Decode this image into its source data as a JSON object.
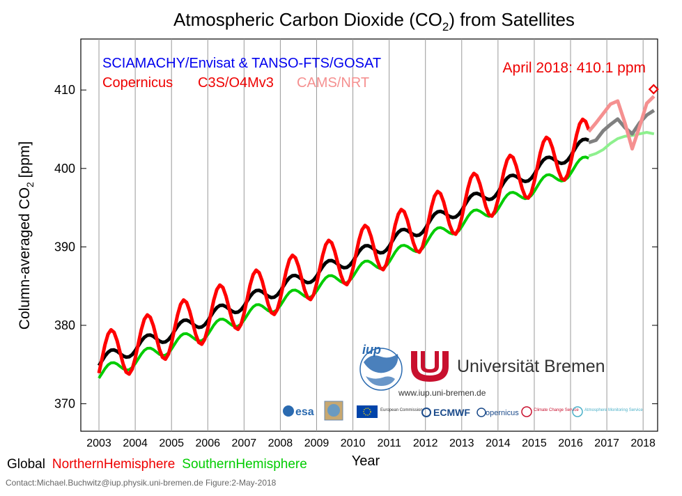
{
  "chart_data": {
    "type": "line",
    "title_main": "Atmospheric Carbon Dioxide (CO",
    "title_sub": "2",
    "title_end": ") from Satellites",
    "ylabel_main": "Column-averaged CO",
    "ylabel_sub": "2",
    "ylabel_end": " [ppm]",
    "xlabel": "Year",
    "ylim": [
      366.5,
      416.5
    ],
    "xlim": [
      2002.5,
      2018.4
    ],
    "y_ticks": [
      370,
      380,
      390,
      400,
      410
    ],
    "x_ticks": [
      2003,
      2004,
      2005,
      2006,
      2007,
      2008,
      2009,
      2010,
      2011,
      2012,
      2013,
      2014,
      2015,
      2016,
      2017,
      2018
    ],
    "grid": "vertical year lines",
    "legend_top": {
      "source_line": "SCIAMACHY/Envisat & TANSO-FTS/GOSAT",
      "copernicus": "Copernicus",
      "c3s": "C3S/O4Mv3",
      "cams": "CAMS/NRT",
      "latest": "April 2018: 410.1 ppm"
    },
    "legend_bottom": {
      "global": "Global",
      "nh": "NorthernHemisphere",
      "sh": "SouthernHemisphere"
    },
    "colors": {
      "global": "#000000",
      "global_nrt": "#808080",
      "nh": "#ff0000",
      "nh_nrt": "#f59090",
      "sh": "#00cc00",
      "sh_nrt": "#8ef08e",
      "source_line": "#0000ee",
      "latest": "#ee0000"
    },
    "latest_point": {
      "x": 2018.29,
      "y": 410.1
    },
    "model": {
      "start": 2003.0,
      "end": 2016.5,
      "nrt_start": 2016.5,
      "nrt_end": 2018.0,
      "global": {
        "base": 375.3,
        "rate_early": 1.9,
        "rate_late": 2.3,
        "amp": 0.9
      },
      "nh": {
        "base": 375.5,
        "rate_early": 1.9,
        "rate_late": 2.3,
        "amp": 3.3
      },
      "sh": {
        "base": 373.7,
        "rate_early": 1.85,
        "rate_late": 2.25,
        "amp": 0.9
      },
      "global_nrt": [
        [
          2016.5,
          403.3
        ],
        [
          2016.7,
          403.6
        ],
        [
          2016.9,
          404.8
        ],
        [
          2017.1,
          405.6
        ],
        [
          2017.3,
          406.3
        ],
        [
          2017.5,
          405.2
        ],
        [
          2017.7,
          404.4
        ],
        [
          2017.9,
          405.8
        ],
        [
          2018.1,
          406.8
        ],
        [
          2018.3,
          407.4
        ]
      ],
      "nh_nrt": [
        [
          2016.5,
          404.7
        ],
        [
          2016.7,
          405.8
        ],
        [
          2016.9,
          407.0
        ],
        [
          2017.1,
          408.2
        ],
        [
          2017.3,
          408.6
        ],
        [
          2017.5,
          405.8
        ],
        [
          2017.7,
          402.5
        ],
        [
          2017.9,
          405.3
        ],
        [
          2018.1,
          408.3
        ],
        [
          2018.3,
          409.2
        ]
      ],
      "sh_nrt": [
        [
          2016.5,
          401.6
        ],
        [
          2016.7,
          401.9
        ],
        [
          2016.9,
          402.4
        ],
        [
          2017.1,
          403.2
        ],
        [
          2017.3,
          403.8
        ],
        [
          2017.5,
          404.1
        ],
        [
          2017.7,
          404.2
        ],
        [
          2017.9,
          404.4
        ],
        [
          2018.1,
          404.6
        ],
        [
          2018.3,
          404.4
        ]
      ]
    }
  },
  "logos": {
    "iup": "iup",
    "university": "Universität Bremen",
    "website": "www.iup.uni-bremen.de",
    "esa": "esa",
    "ec_label": "European Commission",
    "ecmwf": "ECMWF",
    "copernicus_logo": "opernicus",
    "ccs": "Climate Change Service",
    "cams_service": "Atmosphere Monitoring Service"
  },
  "footer": {
    "contact": "Contact:Michael.Buchwitz@iup.physik.uni-bremen.de Figure:2-May-2018"
  }
}
